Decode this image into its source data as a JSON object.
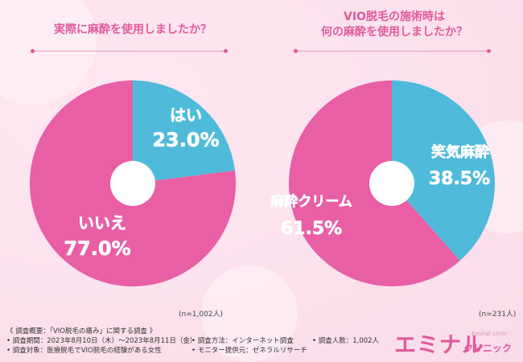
{
  "colors": {
    "pink": "#e95fa6",
    "blue": "#4fbad9",
    "title": "#e05a9a"
  },
  "chart_data": [
    {
      "type": "pie",
      "title": "実際に麻酔を使用しましたか？",
      "categories": [
        "はい",
        "いいえ"
      ],
      "values": [
        23.0,
        77.0
      ],
      "value_labels": [
        "23.0%",
        "77.0%"
      ],
      "sample": "(n=1,002人)"
    },
    {
      "type": "pie",
      "title_lines": [
        "VIO脱毛の施術時は",
        "何の麻酔を使用しましたか？"
      ],
      "categories": [
        "笑気麻酔",
        "麻酔クリーム"
      ],
      "values": [
        38.5,
        61.5
      ],
      "value_labels": [
        "38.5%",
        "61.5%"
      ],
      "sample": "(n=231人)"
    }
  ],
  "footer": {
    "heading": "《 調査概要：「VIO脱毛の痛み」に関する調査 》",
    "period": "• 調査期間：2023年8月10日（木）～2023年8月11日（金）",
    "method": "• 調査方法：インターネット調査",
    "people": "• 調査人数：1,002人",
    "target": "• 調査対象：医療脱毛でVIO脱毛の経験がある女性",
    "provider": "• モニター提供元：ゼネラルリサーチ"
  },
  "logo": {
    "brand": "エミナル",
    "en": "Eminal clinic♡",
    "clinic": "クリニック"
  }
}
